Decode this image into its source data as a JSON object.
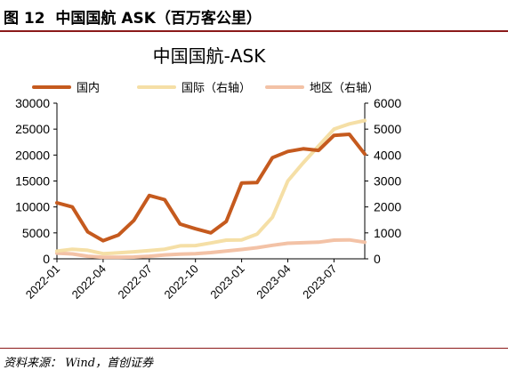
{
  "figure": {
    "label": "图 12",
    "title": "中国国航 ASK（百万客公里）",
    "source": "资料来源：   Wind，首创证券"
  },
  "chart_data": {
    "type": "line",
    "title": "中国国航-ASK",
    "x": [
      "2022-01",
      "2022-02",
      "2022-03",
      "2022-04",
      "2022-05",
      "2022-06",
      "2022-07",
      "2022-08",
      "2022-09",
      "2022-10",
      "2022-11",
      "2022-12",
      "2023-01",
      "2023-02",
      "2023-03",
      "2023-04",
      "2023-05",
      "2023-06",
      "2023-07",
      "2023-08",
      "2023-09"
    ],
    "x_tick_labels": [
      "2022-01",
      "2022-04",
      "2022-07",
      "2022-10",
      "2023-01",
      "2023-04",
      "2023-07"
    ],
    "y_left": {
      "lim": [
        0,
        30000
      ],
      "ticks": [
        "0",
        "5000",
        "10000",
        "15000",
        "20000",
        "25000",
        "30000"
      ]
    },
    "y_right": {
      "lim": [
        0,
        6000
      ],
      "ticks": [
        "0",
        "1000",
        "2000",
        "3000",
        "4000",
        "5000",
        "6000"
      ]
    },
    "legend_position": "top",
    "series": [
      {
        "name": "国内",
        "axis": "left",
        "color": "#c55a1e",
        "values": [
          10800,
          10000,
          5200,
          3500,
          4600,
          7400,
          12200,
          11400,
          6700,
          5800,
          5000,
          7200,
          14600,
          14700,
          19500,
          20700,
          21200,
          20900,
          23800,
          24000,
          20200
        ]
      },
      {
        "name": "国际（右轴）",
        "axis": "right",
        "color": "#f5dfa6",
        "values": [
          300,
          370,
          330,
          200,
          230,
          270,
          320,
          370,
          500,
          510,
          610,
          720,
          730,
          950,
          1600,
          3000,
          3700,
          4350,
          5000,
          5200,
          5330
        ]
      },
      {
        "name": "地区（右轴）",
        "axis": "right",
        "color": "#f3c2a6",
        "values": [
          220,
          190,
          100,
          60,
          60,
          70,
          100,
          150,
          180,
          200,
          240,
          300,
          360,
          430,
          520,
          600,
          620,
          640,
          720,
          730,
          640
        ]
      }
    ]
  }
}
